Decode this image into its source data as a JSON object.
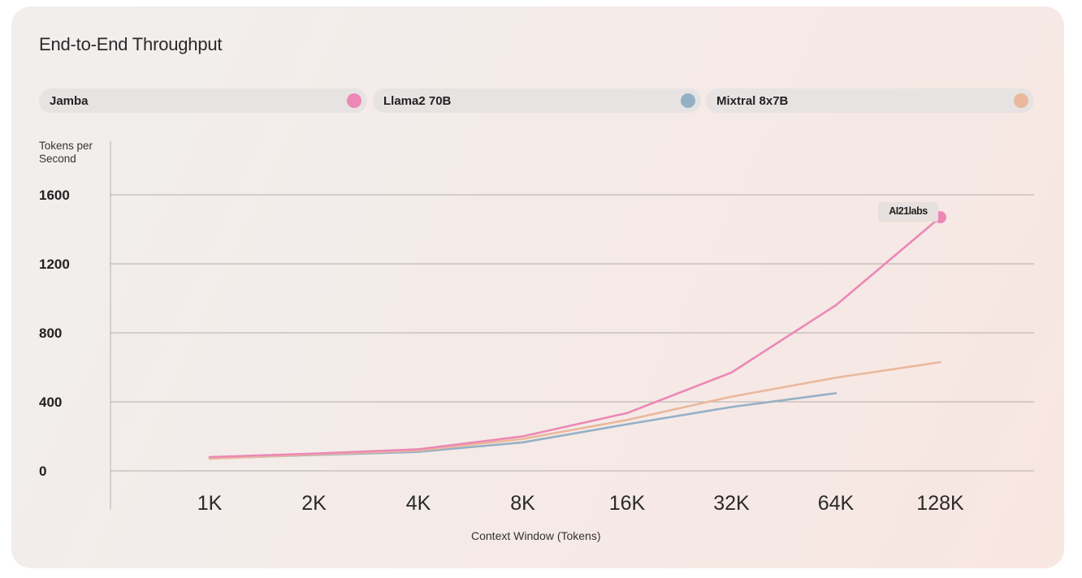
{
  "colors": {
    "jamba": "#ec88b6",
    "llama": "#94b0c6",
    "mixtral": "#eab89c",
    "grid": "#9e9896",
    "axis": "#b7b0ae"
  },
  "legend": [
    {
      "label": "Jamba",
      "color": "#ec88b6"
    },
    {
      "label": "Llama2 70B",
      "color": "#94b0c6"
    },
    {
      "label": "Mixtral 8x7B",
      "color": "#eab89c"
    }
  ],
  "annotation": {
    "text": "AI21labs"
  },
  "chart_data": {
    "type": "line",
    "title": "End-to-End Throughput",
    "xlabel": "Context Window (Tokens)",
    "ylabel": "Tokens per Second",
    "categories": [
      "1K",
      "2K",
      "4K",
      "8K",
      "16K",
      "32K",
      "64K",
      "128K"
    ],
    "yticks": [
      0,
      400,
      800,
      1200,
      1600
    ],
    "ylim": [
      0,
      1600
    ],
    "grid": true,
    "legend_position": "top",
    "series": [
      {
        "name": "Jamba",
        "color": "#ec88b6",
        "points": [
          [
            1,
            80
          ],
          [
            2,
            100
          ],
          [
            3,
            125
          ],
          [
            4,
            200
          ],
          [
            5,
            335
          ],
          [
            6,
            570
          ],
          [
            7,
            960
          ],
          [
            8,
            1470
          ]
        ]
      },
      {
        "name": "Mixtral 8x7B",
        "color": "#eab89c",
        "points": [
          [
            1,
            70
          ],
          [
            2,
            95
          ],
          [
            3,
            118
          ],
          [
            4,
            185
          ],
          [
            5,
            295
          ],
          [
            6,
            430
          ],
          [
            7,
            540
          ],
          [
            8,
            630
          ]
        ]
      },
      {
        "name": "Llama2 70B",
        "color": "#94b0c6",
        "points": [
          [
            1,
            72
          ],
          [
            2,
            92
          ],
          [
            3,
            110
          ],
          [
            4,
            165
          ],
          [
            5,
            270
          ],
          [
            6,
            370
          ],
          [
            7,
            450
          ]
        ]
      }
    ]
  }
}
